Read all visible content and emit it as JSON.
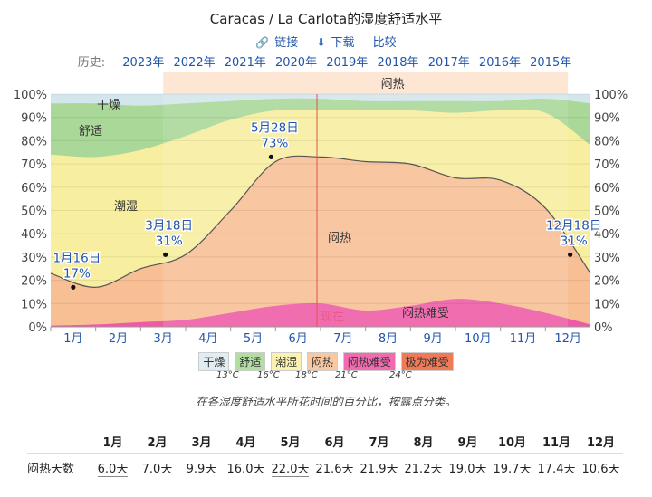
{
  "title": "Caracas / La Carlota的湿度舒适水平",
  "links": {
    "link_label": "链接",
    "download_label": "下载",
    "compare_label": "比较"
  },
  "history": {
    "label": "历史:",
    "years": [
      "2023年",
      "2022年",
      "2021年",
      "2020年",
      "2019年",
      "2018年",
      "2017年",
      "2016年",
      "2015年"
    ]
  },
  "chart_data": {
    "type": "area",
    "categories": [
      "1月",
      "2月",
      "3月",
      "4月",
      "5月",
      "6月",
      "7月",
      "8月",
      "9月",
      "10月",
      "11月",
      "12月"
    ],
    "y_ticks": [
      "0%",
      "10%",
      "20%",
      "30%",
      "40%",
      "50%",
      "60%",
      "70%",
      "80%",
      "90%",
      "100%"
    ],
    "ylim": [
      0,
      100
    ],
    "series": [
      {
        "name": "极为难受",
        "x": [
          0,
          1,
          2,
          3,
          4,
          5,
          6,
          7,
          8,
          9,
          10,
          11,
          12
        ],
        "values": [
          0,
          0,
          0,
          0,
          0,
          0,
          0,
          0,
          0,
          0,
          0,
          0,
          0
        ]
      },
      {
        "name": "闷热难受",
        "x": [
          0,
          1,
          2,
          3,
          4,
          5,
          6,
          7,
          8,
          9,
          10,
          11,
          12
        ],
        "values": [
          0.5,
          1,
          2,
          3,
          6,
          9,
          10,
          7,
          9,
          12,
          10,
          6,
          1
        ]
      },
      {
        "name": "闷热",
        "x": [
          0,
          1,
          2,
          3,
          4,
          5,
          6,
          7,
          8,
          9,
          10,
          11,
          12
        ],
        "values": [
          23,
          17,
          25,
          31,
          50,
          71,
          73,
          71,
          70,
          64,
          63,
          51,
          23
        ]
      },
      {
        "name": "潮湿",
        "x": [
          0,
          1,
          2,
          3,
          4,
          5,
          6,
          7,
          8,
          9,
          10,
          11,
          12
        ],
        "values": [
          74,
          73,
          76,
          82,
          89,
          93,
          93,
          93,
          93,
          92,
          93,
          92,
          78
        ]
      },
      {
        "name": "舒适",
        "x": [
          0,
          1,
          2,
          3,
          4,
          5,
          6,
          7,
          8,
          9,
          10,
          11,
          12
        ],
        "values": [
          96,
          96,
          95,
          96,
          97,
          98,
          98,
          97,
          97,
          97,
          97,
          98,
          96
        ]
      }
    ],
    "area_labels": {
      "dry": "干燥",
      "comfortable": "舒适",
      "humid": "潮湿",
      "muggy": "闷热",
      "oppressive": "闷热难受"
    },
    "highlight_band": {
      "label": "闷热",
      "from_month_index": 2.5,
      "to_month_index": 11.5
    },
    "now": {
      "label": "现在",
      "x": 5.92
    },
    "annotations": [
      {
        "date": "1月16日",
        "value": 17,
        "value_label": "17%",
        "x": 0.5
      },
      {
        "date": "3月18日",
        "value": 31,
        "value_label": "31%",
        "x": 2.55
      },
      {
        "date": "5月28日",
        "value": 73,
        "value_label": "73%",
        "x": 4.9
      },
      {
        "date": "12月18日",
        "value": 31,
        "value_label": "31%",
        "x": 11.55
      }
    ]
  },
  "legend": {
    "items": [
      {
        "label": "干燥",
        "color": "#e0eef3"
      },
      {
        "label": "舒适",
        "color": "#b2dfa1"
      },
      {
        "label": "潮湿",
        "color": "#fbf2b0"
      },
      {
        "label": "闷热",
        "color": "#fac8a0"
      },
      {
        "label": "闷热难受",
        "color": "#f26ab0"
      },
      {
        "label": "极为难受",
        "color": "#f07a57"
      }
    ],
    "thresholds": [
      "13°C",
      "16°C",
      "18°C",
      "21°C",
      "24°C"
    ]
  },
  "caption": "在各湿度舒适水平所花时间的百分比，按露点分类。",
  "table": {
    "row_label": "闷热天数",
    "months": [
      "1月",
      "2月",
      "3月",
      "4月",
      "5月",
      "6月",
      "7月",
      "8月",
      "9月",
      "10月",
      "11月",
      "12月"
    ],
    "values": [
      "6.0天",
      "7.0天",
      "9.9天",
      "16.0天",
      "22.0天",
      "21.6天",
      "21.9天",
      "21.2天",
      "19.0天",
      "19.7天",
      "17.4天",
      "10.6天"
    ]
  }
}
